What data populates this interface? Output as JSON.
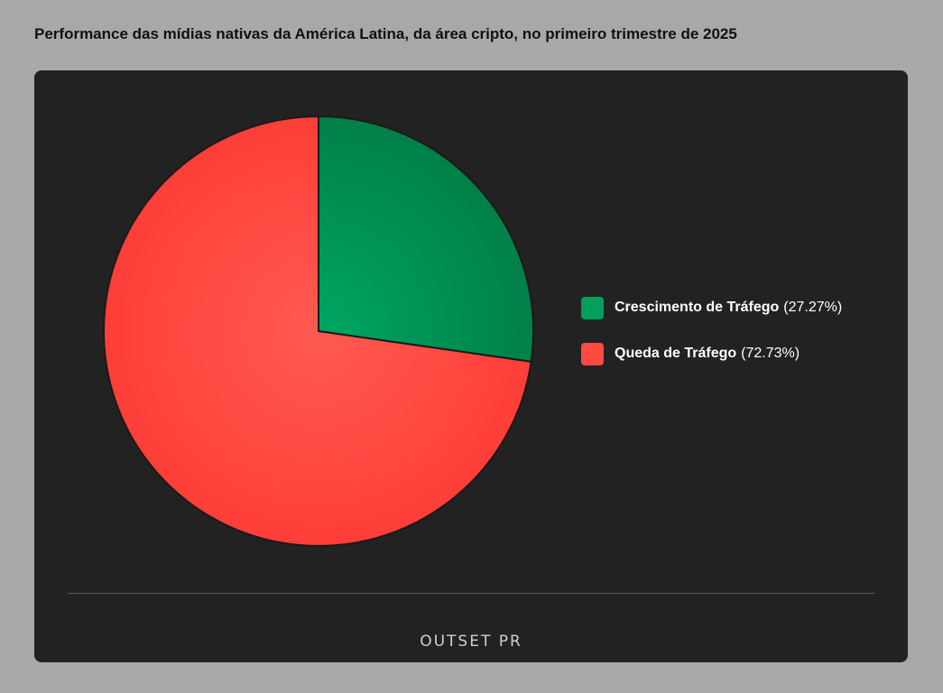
{
  "chart_data": {
    "type": "pie",
    "title": "Performance das mídias nativas da América Latina, da área cripto, no primeiro trimestre de 2025",
    "slices": [
      {
        "label": "Crescimento de Tráfego",
        "percent_label": "(27.27%)",
        "value": 27.27,
        "color": "#00a05a"
      },
      {
        "label": "Queda de Tráfego",
        "percent_label": "(72.73%)",
        "value": 72.73,
        "color": "#ff4a42"
      }
    ],
    "legend_position": "right"
  },
  "footer": {
    "logo_text": "OUTSET PR"
  }
}
